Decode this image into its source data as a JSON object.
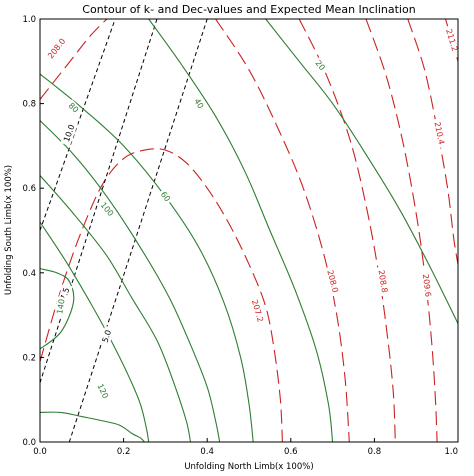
{
  "chart_data": {
    "type": "contour",
    "title": "Contour of k- and Dec-values and Expected Mean Inclination",
    "xlabel": "Unfolding North Limb(x 100%)",
    "ylabel": "Unfolding South Limb(x 100%)",
    "xlim": [
      0.0,
      1.0
    ],
    "ylim": [
      0.0,
      1.0
    ],
    "xticks": [
      "0.0",
      "0.2",
      "0.4",
      "0.6",
      "0.8",
      "1.0"
    ],
    "yticks": [
      "0.0",
      "0.2",
      "0.4",
      "0.6",
      "0.8",
      "1.0"
    ],
    "grid": false,
    "colors": {
      "k_values": "#cc2222",
      "dec_values": "#000000",
      "inclination": "#2e7d32"
    },
    "series": [
      {
        "group": "k_values",
        "style": "long-dash",
        "levels": [
          {
            "label": "208.0",
            "x": [
              0.0,
              0.04,
              0.08,
              0.12,
              0.16
            ],
            "y": [
              0.81,
              0.86,
              0.91,
              0.96,
              1.0
            ],
            "label_at": [
              0.04,
              0.93
            ]
          },
          {
            "label": "207.2",
            "x": [
              0.0,
              0.05,
              0.1,
              0.15,
              0.2,
              0.25,
              0.3,
              0.35,
              0.4,
              0.45,
              0.5,
              0.54,
              0.56,
              0.575,
              0.58
            ],
            "y": [
              0.19,
              0.36,
              0.5,
              0.61,
              0.67,
              0.69,
              0.69,
              0.66,
              0.6,
              0.52,
              0.42,
              0.32,
              0.22,
              0.1,
              0.0
            ],
            "label_at": [
              0.52,
              0.31
            ]
          },
          {
            "label": "208.0",
            "x": [
              0.42,
              0.5,
              0.57,
              0.63,
              0.68,
              0.71,
              0.73,
              0.74
            ],
            "y": [
              1.0,
              0.88,
              0.74,
              0.6,
              0.44,
              0.3,
              0.15,
              0.0
            ],
            "label_at": [
              0.7,
              0.38
            ]
          },
          {
            "label": "208.8",
            "x": [
              0.62,
              0.68,
              0.74,
              0.78,
              0.81,
              0.83,
              0.845,
              0.85
            ],
            "y": [
              1.0,
              0.88,
              0.72,
              0.56,
              0.4,
              0.26,
              0.12,
              0.0
            ],
            "label_at": [
              0.82,
              0.38
            ]
          },
          {
            "label": "209.6",
            "x": [
              0.78,
              0.83,
              0.87,
              0.9,
              0.92,
              0.935,
              0.945,
              0.95
            ],
            "y": [
              1.0,
              0.86,
              0.7,
              0.54,
              0.4,
              0.26,
              0.12,
              0.0
            ],
            "label_at": [
              0.925,
              0.37
            ]
          },
          {
            "label": "210.4",
            "x": [
              0.88,
              0.92,
              0.95,
              0.975,
              0.99,
              1.0
            ],
            "y": [
              1.0,
              0.88,
              0.74,
              0.6,
              0.48,
              0.42
            ],
            "label_at": [
              0.955,
              0.73
            ]
          },
          {
            "label": "211.2",
            "x": [
              0.97,
              0.985,
              1.0
            ],
            "y": [
              1.0,
              0.95,
              0.9
            ],
            "label_at": [
              0.985,
              0.95
            ]
          }
        ]
      },
      {
        "group": "dec_values",
        "style": "short-dash",
        "levels": [
          {
            "label": "5.0",
            "x": [
              0.07,
              0.4
            ],
            "y": [
              0.0,
              1.0
            ],
            "label_at": [
              0.16,
              0.25
            ]
          },
          {
            "label": "7.5",
            "x": [
              0.0,
              0.28
            ],
            "y": [
              0.14,
              1.0
            ],
            "label_at": [
              0.06,
              0.35
            ]
          },
          {
            "label": "10.0",
            "x": [
              0.0,
              0.18
            ],
            "y": [
              0.5,
              1.0
            ],
            "label_at": [
              0.07,
              0.73
            ]
          }
        ]
      },
      {
        "group": "inclination",
        "style": "solid",
        "levels": [
          {
            "label": "20",
            "x": [
              0.54,
              0.62,
              0.7,
              0.78,
              0.86,
              0.93,
              1.0
            ],
            "y": [
              1.0,
              0.9,
              0.8,
              0.68,
              0.55,
              0.42,
              0.28
            ],
            "label_at": [
              0.67,
              0.89
            ]
          },
          {
            "label": "40",
            "x": [
              0.26,
              0.34,
              0.42,
              0.49,
              0.55,
              0.61,
              0.66,
              0.69,
              0.7
            ],
            "y": [
              1.0,
              0.89,
              0.77,
              0.64,
              0.5,
              0.36,
              0.22,
              0.09,
              0.0
            ],
            "label_at": [
              0.38,
              0.8
            ]
          },
          {
            "label": "60",
            "x": [
              0.0,
              0.1,
              0.2,
              0.3,
              0.38,
              0.44,
              0.48,
              0.5,
              0.51
            ],
            "y": [
              0.87,
              0.79,
              0.7,
              0.58,
              0.46,
              0.33,
              0.2,
              0.09,
              0.0
            ],
            "label_at": [
              0.3,
              0.58
            ]
          },
          {
            "label": "80",
            "x": [
              0.0,
              0.08,
              0.16,
              0.24,
              0.31,
              0.36,
              0.4,
              0.42,
              0.43
            ],
            "y": [
              0.76,
              0.68,
              0.58,
              0.46,
              0.34,
              0.23,
              0.13,
              0.05,
              0.0
            ],
            "label_at": [
              0.08,
              0.79
            ]
          },
          {
            "label": "100",
            "x": [
              0.0,
              0.08,
              0.16,
              0.22,
              0.28,
              0.32,
              0.35,
              0.36
            ],
            "y": [
              0.63,
              0.54,
              0.44,
              0.34,
              0.24,
              0.14,
              0.05,
              0.0
            ],
            "label_at": [
              0.16,
              0.55
            ]
          },
          {
            "label": "120",
            "x": [
              0.0,
              0.06,
              0.12,
              0.17,
              0.21,
              0.24,
              0.255,
              0.26
            ],
            "y": [
              0.52,
              0.43,
              0.33,
              0.24,
              0.16,
              0.09,
              0.03,
              0.0
            ],
            "label_at": [
              0.15,
              0.12
            ]
          },
          {
            "label": "140",
            "x": [
              0.0,
              0.05,
              0.08,
              0.07,
              0.04,
              0.0
            ],
            "y": [
              0.22,
              0.26,
              0.33,
              0.38,
              0.4,
              0.41
            ],
            "label_at": [
              0.05,
              0.32
            ]
          },
          {
            "label": "",
            "x": [
              0.0,
              0.05,
              0.1,
              0.15,
              0.19,
              0.22,
              0.24,
              0.25
            ],
            "y": [
              0.07,
              0.07,
              0.06,
              0.05,
              0.04,
              0.02,
              0.01,
              0.0
            ],
            "label_at": null
          }
        ]
      }
    ]
  }
}
